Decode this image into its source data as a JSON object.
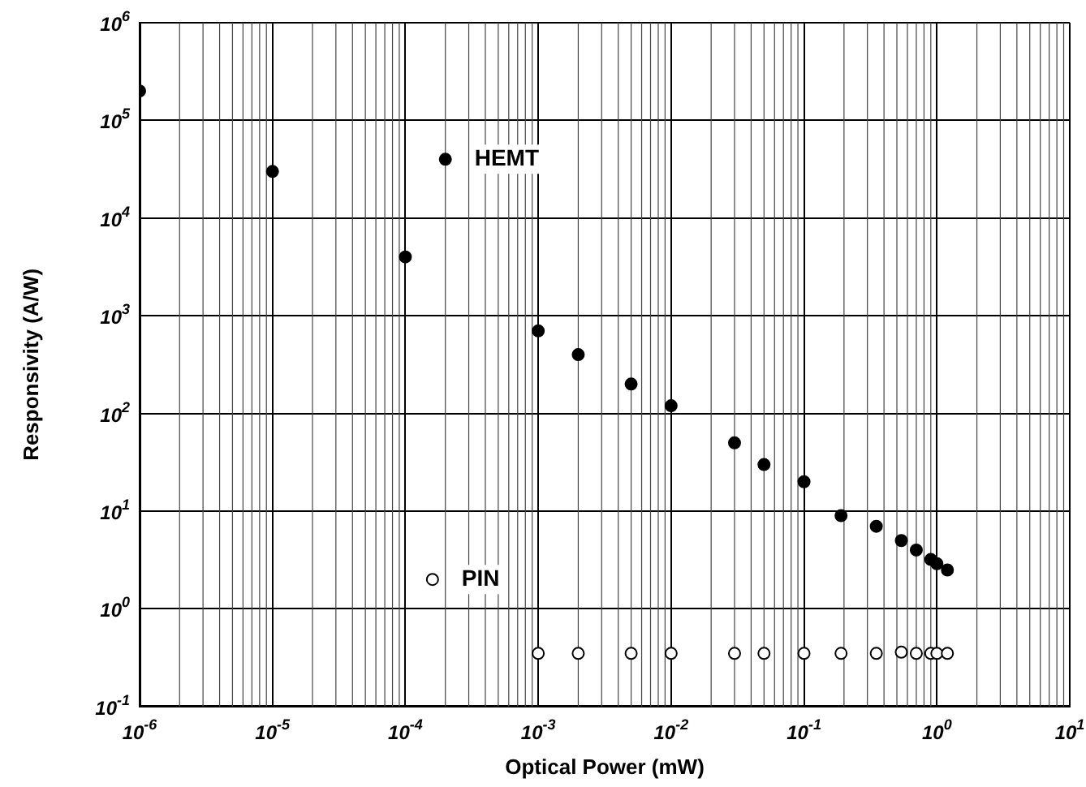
{
  "chart_data": {
    "type": "scatter",
    "xlabel": "Optical Power (mW)",
    "ylabel": "Responsivity (A/W)",
    "log": "xy",
    "grid": true,
    "marker": "circle",
    "legend": false,
    "xlim": [
      1e-06,
      10
    ],
    "ylim": [
      0.1,
      1000000
    ],
    "xticks": [
      {
        "value": 1e-06,
        "label": "10$^{-6}$"
      },
      {
        "value": 1e-05,
        "label": "10$^{-5}$"
      },
      {
        "value": 0.0001,
        "label": "10$^{-4}$"
      },
      {
        "value": 0.001,
        "label": "10$^{-3}$"
      },
      {
        "value": 0.01,
        "label": "10$^{-2}$"
      },
      {
        "value": 0.1,
        "label": "10$^{-1}$"
      },
      {
        "value": 1,
        "label": "10$^{0}$"
      },
      {
        "value": 10,
        "label": "10$^{1}$"
      }
    ],
    "yticks": [
      {
        "value": 0.1,
        "label": "10$^{-1}$"
      },
      {
        "value": 1,
        "label": "10$^{0}$"
      },
      {
        "value": 10,
        "label": "10$^{1}$"
      },
      {
        "value": 100,
        "label": "10$^{2}$"
      },
      {
        "value": 1000,
        "label": "10$^{3}$"
      },
      {
        "value": 10000,
        "label": "10$^{4}$"
      },
      {
        "value": 100000,
        "label": "10$^{5}$"
      },
      {
        "value": 1000000,
        "label": "10$^{6}$"
      }
    ],
    "series": [
      {
        "color": "#000000",
        "x": [
          1e-06,
          1e-05,
          0.0001,
          0.0002,
          0.001,
          0.002,
          0.005,
          0.01,
          0.03,
          0.05,
          0.1,
          0.19,
          0.35,
          0.54,
          0.7,
          0.9,
          1.0,
          1.2
        ],
        "values": [
          200000,
          30000,
          4000,
          40000,
          700,
          400,
          200,
          120,
          50,
          30,
          20,
          9,
          7,
          5,
          4,
          3.2,
          2.9,
          2.5
        ]
      },
      {
        "color": "#ffffff",
        "x": [
          0.00016,
          0.001,
          0.002,
          0.005,
          0.01,
          0.03,
          0.05,
          0.1,
          0.19,
          0.35,
          0.54,
          0.7,
          0.9,
          1.0,
          1.2
        ],
        "values": [
          2,
          0.35,
          0.35,
          0.35,
          0.35,
          0.35,
          0.35,
          0.35,
          0.35,
          0.35,
          0.36,
          0.35,
          0.35,
          0.35,
          0.35
        ]
      }
    ],
    "annotations": [
      {
        "text": "HEMT",
        "x": 0.0002,
        "y": 40000
      },
      {
        "text": "PIN",
        "x": 0.00016,
        "y": 2
      }
    ]
  }
}
